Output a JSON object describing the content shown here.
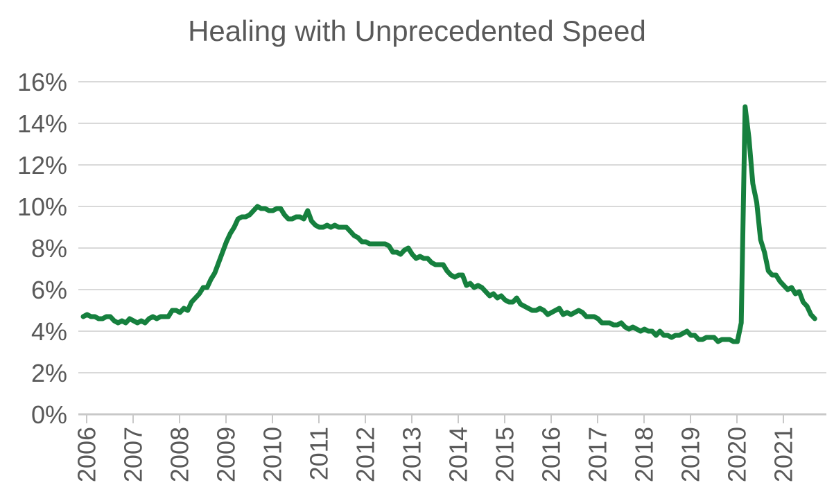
{
  "page": {
    "background": "#ffffff"
  },
  "chart_data": {
    "type": "line",
    "title": "Healing with Unprecedented Speed",
    "x_start": "2006-01",
    "frequency": "monthly",
    "x_tick_labels": [
      "2006",
      "2007",
      "2008",
      "2009",
      "2010",
      "2011",
      "2012",
      "2013",
      "2014",
      "2015",
      "2016",
      "2017",
      "2018",
      "2019",
      "2020",
      "2021"
    ],
    "y_ticks": [
      {
        "value": 0,
        "label": "0%"
      },
      {
        "value": 2,
        "label": "2%"
      },
      {
        "value": 4,
        "label": "4%"
      },
      {
        "value": 6,
        "label": "6%"
      },
      {
        "value": 8,
        "label": "8%"
      },
      {
        "value": 10,
        "label": "10%"
      },
      {
        "value": 12,
        "label": "12%"
      },
      {
        "value": 14,
        "label": "14%"
      },
      {
        "value": 16,
        "label": "16%"
      }
    ],
    "ylim": [
      0,
      16
    ],
    "grid": "horizontal",
    "legend": "none",
    "line_color": "#16803e",
    "grid_color": "#d9d9d9",
    "axis_color": "#c8c8c8",
    "label_color": "#595959",
    "title_color": "#595959",
    "series": [
      {
        "values": [
          4.7,
          4.8,
          4.7,
          4.7,
          4.6,
          4.6,
          4.7,
          4.7,
          4.5,
          4.4,
          4.5,
          4.4,
          4.6,
          4.5,
          4.4,
          4.5,
          4.4,
          4.6,
          4.7,
          4.6,
          4.7,
          4.7,
          4.7,
          5.0,
          5.0,
          4.9,
          5.1,
          5.0,
          5.4,
          5.6,
          5.8,
          6.1,
          6.1,
          6.5,
          6.8,
          7.3,
          7.8,
          8.3,
          8.7,
          9.0,
          9.4,
          9.5,
          9.5,
          9.6,
          9.8,
          10.0,
          9.9,
          9.9,
          9.8,
          9.8,
          9.9,
          9.9,
          9.6,
          9.4,
          9.4,
          9.5,
          9.5,
          9.4,
          9.8,
          9.3,
          9.1,
          9.0,
          9.0,
          9.1,
          9.0,
          9.1,
          9.0,
          9.0,
          9.0,
          8.8,
          8.6,
          8.5,
          8.3,
          8.3,
          8.2,
          8.2,
          8.2,
          8.2,
          8.2,
          8.1,
          7.8,
          7.8,
          7.7,
          7.9,
          8.0,
          7.7,
          7.5,
          7.6,
          7.5,
          7.5,
          7.3,
          7.2,
          7.2,
          7.2,
          6.9,
          6.7,
          6.6,
          6.7,
          6.7,
          6.2,
          6.3,
          6.1,
          6.2,
          6.1,
          5.9,
          5.7,
          5.8,
          5.6,
          5.7,
          5.5,
          5.4,
          5.4,
          5.6,
          5.3,
          5.2,
          5.1,
          5.0,
          5.0,
          5.1,
          5.0,
          4.8,
          4.9,
          5.0,
          5.1,
          4.8,
          4.9,
          4.8,
          4.9,
          5.0,
          4.9,
          4.7,
          4.7,
          4.7,
          4.6,
          4.4,
          4.4,
          4.4,
          4.3,
          4.3,
          4.4,
          4.2,
          4.1,
          4.2,
          4.1,
          4.0,
          4.1,
          4.0,
          4.0,
          3.8,
          4.0,
          3.8,
          3.8,
          3.7,
          3.8,
          3.8,
          3.9,
          4.0,
          3.8,
          3.8,
          3.6,
          3.6,
          3.7,
          3.7,
          3.7,
          3.5,
          3.6,
          3.6,
          3.6,
          3.5,
          3.5,
          4.4,
          14.8,
          13.3,
          11.1,
          10.2,
          8.4,
          7.8,
          6.9,
          6.7,
          6.7,
          6.4,
          6.2,
          6.0,
          6.1,
          5.8,
          5.9,
          5.4,
          5.2,
          4.8,
          4.6
        ]
      }
    ]
  }
}
